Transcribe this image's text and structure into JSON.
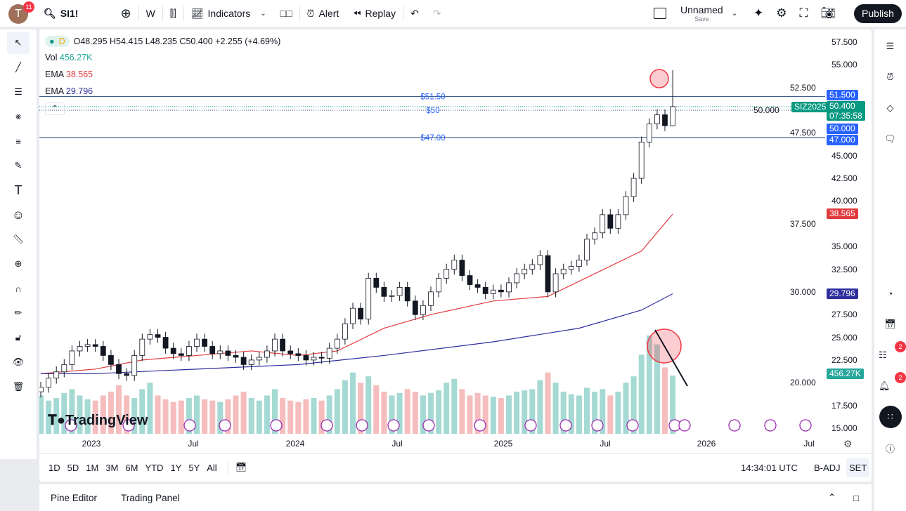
{
  "header": {
    "avatar_letter": "T",
    "notifications": "11",
    "symbol": "SI1!",
    "interval": "W",
    "indicators": "Indicators",
    "alert": "Alert",
    "replay": "Replay",
    "layout_name": "Unnamed",
    "layout_sub": "Save",
    "publish": "Publish"
  },
  "legend": {
    "interval_badge": "D",
    "ohlc": "O48.295 H54.415 L48.235 C50.400 +2.255 (+4.69%)",
    "vol_label": "Vol",
    "vol_value": "456.27K",
    "ema1_label": "EMA",
    "ema1_value": "38.565",
    "ema2_label": "EMA",
    "ema2_value": "29.796"
  },
  "drawings": {
    "line_51_5": "$51.50",
    "line_50": "$50",
    "line_47": "$47.00"
  },
  "price_labels": {
    "p1": "51.500",
    "current": "50.400",
    "countdown": "07:35:58",
    "p2": "50.000",
    "p3": "47.000",
    "ema1": "38.565",
    "ema2": "29.796",
    "vol": "456.27K",
    "symbol_tag": "SIZ2025"
  },
  "colors": {
    "up": "#26a69a",
    "down": "#ef5350",
    "ema1": "#e03a3e",
    "ema2": "#2e2e9e",
    "line": "#2962ff",
    "current": "#089981"
  },
  "logo": "TradingView",
  "events_count": 19,
  "chart_data": {
    "type": "candlestick",
    "price_axis": [
      "57.500",
      "55.000",
      "52.500",
      "50.000",
      "47.500",
      "45.000",
      "42.500",
      "40.000",
      "37.500",
      "35.000",
      "32.500",
      "30.000",
      "27.500",
      "25.000",
      "22.500",
      "20.000",
      "17.500",
      "15.000"
    ],
    "time_axis": [
      "2023",
      "Jul",
      "2024",
      "Jul",
      "2025",
      "Jul",
      "2026",
      "Jul"
    ],
    "ylim": [
      15,
      57.5
    ],
    "closes": [
      19.5,
      20.5,
      21.2,
      22.0,
      23.5,
      24.0,
      24.2,
      24.0,
      23.0,
      22.0,
      21.0,
      20.8,
      23.0,
      24.8,
      25.3,
      25.0,
      23.8,
      23.2,
      23.0,
      24.0,
      24.8,
      24.0,
      23.2,
      23.5,
      23.0,
      22.8,
      22.0,
      22.5,
      22.8,
      23.5,
      24.8,
      23.5,
      23.2,
      23.0,
      22.5,
      22.8,
      22.7,
      23.8,
      24.8,
      26.5,
      28.2,
      27.0,
      31.5,
      30.5,
      29.5,
      29.6,
      30.5,
      29.0,
      27.5,
      28.5,
      30.0,
      31.5,
      32.5,
      33.5,
      31.8,
      30.8,
      30.5,
      29.8,
      30.2,
      30.0,
      31.0,
      32.0,
      32.5,
      33.0,
      34.0,
      30.0,
      32.0,
      32.5,
      32.8,
      33.5,
      35.8,
      36.5,
      38.5,
      37.0,
      38.5,
      40.5,
      42.5,
      46.5,
      48.5,
      49.5,
      48.3,
      50.4
    ],
    "last_candle": {
      "open": 48.295,
      "high": 54.415,
      "low": 48.235,
      "close": 50.4
    },
    "volume_k": [
      300,
      260,
      280,
      320,
      350,
      300,
      270,
      260,
      300,
      330,
      380,
      300,
      280,
      350,
      400,
      300,
      270,
      250,
      260,
      280,
      300,
      270,
      260,
      250,
      270,
      300,
      330,
      280,
      260,
      300,
      350,
      280,
      260,
      250,
      270,
      280,
      260,
      300,
      350,
      420,
      480,
      400,
      450,
      380,
      330,
      300,
      320,
      350,
      330,
      300,
      320,
      340,
      400,
      430,
      350,
      300,
      320,
      300,
      290,
      280,
      300,
      330,
      340,
      350,
      420,
      480,
      400,
      330,
      310,
      300,
      360,
      330,
      350,
      300,
      330,
      400,
      450,
      620,
      770,
      700,
      520,
      456.27
    ],
    "ema_fast": [
      [
        0,
        21
      ],
      [
        7,
        21.5
      ],
      [
        13,
        22.5
      ],
      [
        20,
        23
      ],
      [
        27,
        23.5
      ],
      [
        33,
        23
      ],
      [
        38,
        23.5
      ],
      [
        44,
        26
      ],
      [
        50,
        27.5
      ],
      [
        58,
        29
      ],
      [
        65,
        29.5
      ],
      [
        71,
        32
      ],
      [
        77,
        34.5
      ],
      [
        81,
        38.565
      ]
    ],
    "ema_slow": [
      [
        0,
        21
      ],
      [
        7,
        21
      ],
      [
        20,
        21.5
      ],
      [
        33,
        22
      ],
      [
        44,
        23
      ],
      [
        58,
        24.5
      ],
      [
        69,
        26
      ],
      [
        77,
        28
      ],
      [
        81,
        29.796
      ]
    ]
  },
  "bottom": {
    "timeframes": [
      "1D",
      "5D",
      "1M",
      "3M",
      "6M",
      "YTD",
      "1Y",
      "5Y",
      "All"
    ],
    "time": "14:34:01 UTC",
    "badj": "B-ADJ",
    "set": "SET",
    "pine": "Pine Editor",
    "trading": "Trading Panel"
  }
}
